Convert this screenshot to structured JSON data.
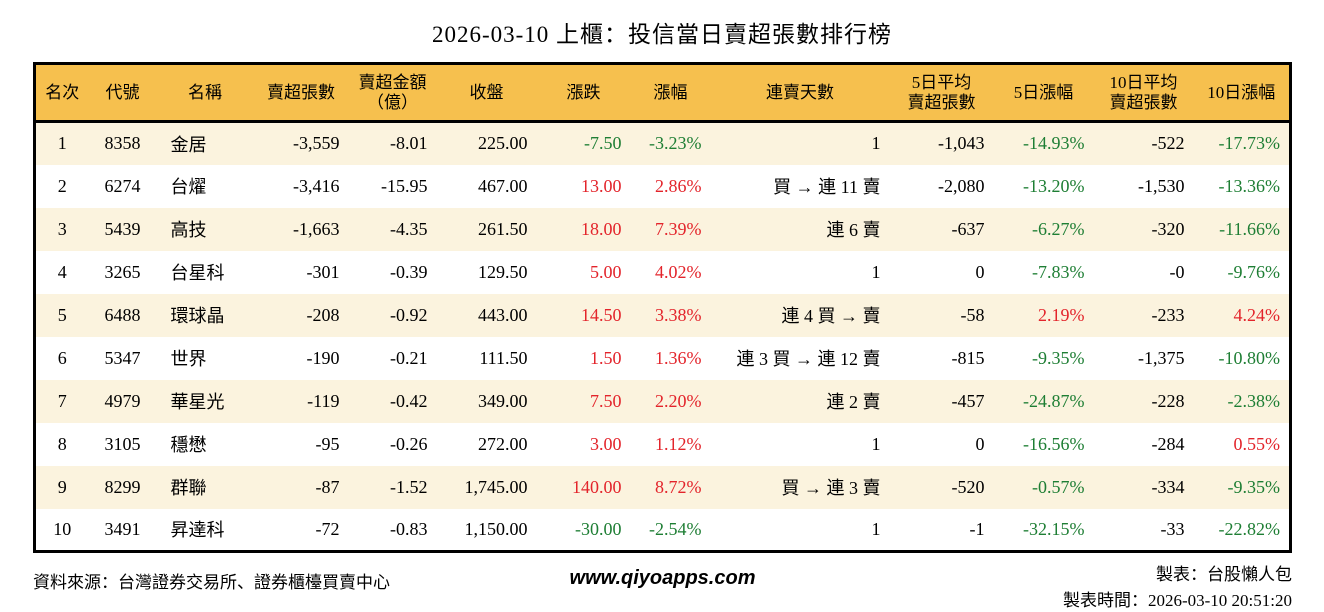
{
  "title": "2026-03-10 上櫃：投信當日賣超張數排行榜",
  "colors": {
    "header_bg": "#f6c04e",
    "stripe_bg": "#fbf3de",
    "up": "#e3242b",
    "down": "#1e7e34",
    "border": "#000000",
    "text": "#000000"
  },
  "chart_data": {
    "type": "table",
    "title": "2026-03-10 上櫃：投信當日賣超張數排行榜",
    "columns": [
      {
        "key": "rank",
        "label": "名次",
        "align": "center",
        "colored": false
      },
      {
        "key": "code",
        "label": "代號",
        "align": "center",
        "colored": false
      },
      {
        "key": "name",
        "label": "名稱",
        "align": "left",
        "colored": false
      },
      {
        "key": "net_sell",
        "label": "賣超張數",
        "align": "right",
        "colored": false
      },
      {
        "key": "amount",
        "label": "賣超金額\n（億）",
        "align": "right",
        "colored": false
      },
      {
        "key": "close",
        "label": "收盤",
        "align": "right",
        "colored": false
      },
      {
        "key": "change",
        "label": "漲跌",
        "align": "right",
        "colored": true
      },
      {
        "key": "change_pct",
        "label": "漲幅",
        "align": "right",
        "colored": true
      },
      {
        "key": "streak",
        "label": "連賣天數",
        "align": "right",
        "colored": false
      },
      {
        "key": "avg5",
        "label": "5日平均\n賣超張數",
        "align": "right",
        "colored": false
      },
      {
        "key": "pct5",
        "label": "5日漲幅",
        "align": "right",
        "colored": true
      },
      {
        "key": "avg10",
        "label": "10日平均\n賣超張數",
        "align": "right",
        "colored": false
      },
      {
        "key": "pct10",
        "label": "10日漲幅",
        "align": "right",
        "colored": true
      }
    ],
    "rows": [
      [
        "1",
        "8358",
        "金居",
        "-3,559",
        "-8.01",
        "225.00",
        "-7.50",
        "-3.23%",
        "1",
        "-1,043",
        "-14.93%",
        "-522",
        "-17.73%"
      ],
      [
        "2",
        "6274",
        "台燿",
        "-3,416",
        "-15.95",
        "467.00",
        "13.00",
        "2.86%",
        "買 → 連 11 賣",
        "-2,080",
        "-13.20%",
        "-1,530",
        "-13.36%"
      ],
      [
        "3",
        "5439",
        "高技",
        "-1,663",
        "-4.35",
        "261.50",
        "18.00",
        "7.39%",
        "連 6 賣",
        "-637",
        "-6.27%",
        "-320",
        "-11.66%"
      ],
      [
        "4",
        "3265",
        "台星科",
        "-301",
        "-0.39",
        "129.50",
        "5.00",
        "4.02%",
        "1",
        "0",
        "-7.83%",
        "-0",
        "-9.76%"
      ],
      [
        "5",
        "6488",
        "環球晶",
        "-208",
        "-0.92",
        "443.00",
        "14.50",
        "3.38%",
        "連 4 買 → 賣",
        "-58",
        "2.19%",
        "-233",
        "4.24%"
      ],
      [
        "6",
        "5347",
        "世界",
        "-190",
        "-0.21",
        "111.50",
        "1.50",
        "1.36%",
        "連 3 買 → 連 12 賣",
        "-815",
        "-9.35%",
        "-1,375",
        "-10.80%"
      ],
      [
        "7",
        "4979",
        "華星光",
        "-119",
        "-0.42",
        "349.00",
        "7.50",
        "2.20%",
        "連 2 賣",
        "-457",
        "-24.87%",
        "-228",
        "-2.38%"
      ],
      [
        "8",
        "3105",
        "穩懋",
        "-95",
        "-0.26",
        "272.00",
        "3.00",
        "1.12%",
        "1",
        "0",
        "-16.56%",
        "-284",
        "0.55%"
      ],
      [
        "9",
        "8299",
        "群聯",
        "-87",
        "-1.52",
        "1,745.00",
        "140.00",
        "8.72%",
        "買 → 連 3 賣",
        "-520",
        "-0.57%",
        "-334",
        "-9.35%"
      ],
      [
        "10",
        "3491",
        "昇達科",
        "-72",
        "-0.83",
        "1,150.00",
        "-30.00",
        "-2.54%",
        "1",
        "-1",
        "-32.15%",
        "-33",
        "-22.82%"
      ]
    ]
  },
  "footer": {
    "source": "資料來源：台灣證券交易所、證券櫃檯買賣中心",
    "website": "www.qiyoapps.com",
    "maker": "製表：台股懶人包",
    "timestamp": "製表時間：2026-03-10 20:51:20"
  }
}
